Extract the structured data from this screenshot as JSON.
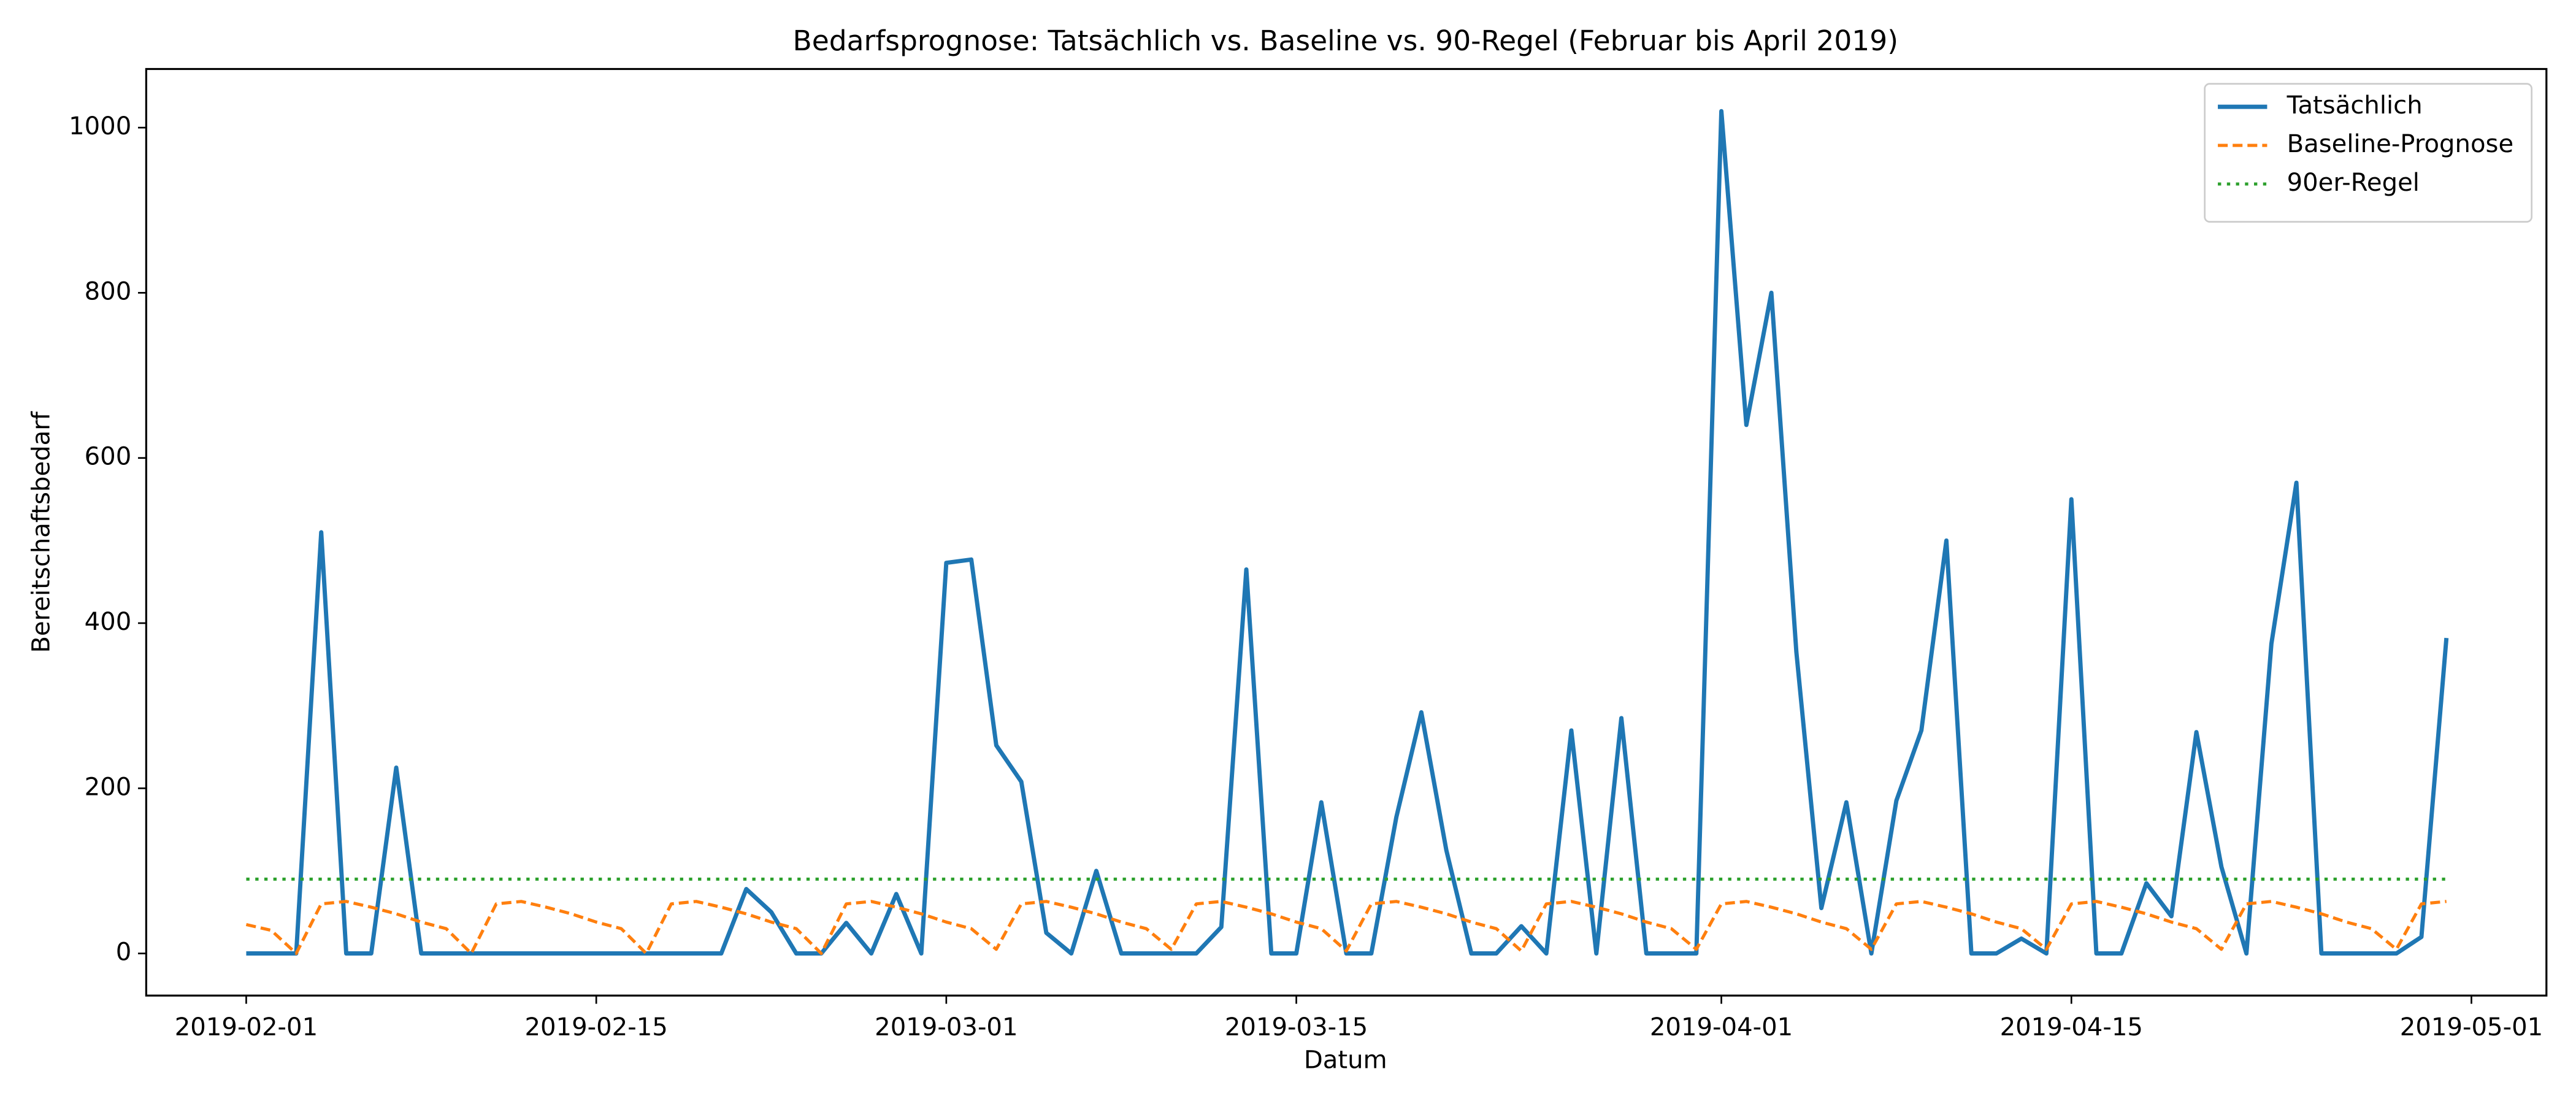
{
  "chart_data": {
    "type": "line",
    "title": "Bedarfsprognose: Tatsächlich vs. Baseline vs. 90-Regel (Februar bis April 2019)",
    "x_label": "Datum",
    "y_label": "Bereitschaftsbedarf",
    "x": [
      "2019-02-01",
      "2019-02-02",
      "2019-02-03",
      "2019-02-04",
      "2019-02-05",
      "2019-02-06",
      "2019-02-07",
      "2019-02-08",
      "2019-02-09",
      "2019-02-10",
      "2019-02-11",
      "2019-02-12",
      "2019-02-13",
      "2019-02-14",
      "2019-02-15",
      "2019-02-16",
      "2019-02-17",
      "2019-02-18",
      "2019-02-19",
      "2019-02-20",
      "2019-02-21",
      "2019-02-22",
      "2019-02-23",
      "2019-02-24",
      "2019-02-25",
      "2019-02-26",
      "2019-02-27",
      "2019-02-28",
      "2019-03-01",
      "2019-03-02",
      "2019-03-03",
      "2019-03-04",
      "2019-03-05",
      "2019-03-06",
      "2019-03-07",
      "2019-03-08",
      "2019-03-09",
      "2019-03-10",
      "2019-03-11",
      "2019-03-12",
      "2019-03-13",
      "2019-03-14",
      "2019-03-15",
      "2019-03-16",
      "2019-03-17",
      "2019-03-18",
      "2019-03-19",
      "2019-03-20",
      "2019-03-21",
      "2019-03-22",
      "2019-03-23",
      "2019-03-24",
      "2019-03-25",
      "2019-03-26",
      "2019-03-27",
      "2019-03-28",
      "2019-03-29",
      "2019-03-30",
      "2019-03-31",
      "2019-04-01",
      "2019-04-02",
      "2019-04-03",
      "2019-04-04",
      "2019-04-05",
      "2019-04-06",
      "2019-04-07",
      "2019-04-08",
      "2019-04-09",
      "2019-04-10",
      "2019-04-11",
      "2019-04-12",
      "2019-04-13",
      "2019-04-14",
      "2019-04-15",
      "2019-04-16",
      "2019-04-17",
      "2019-04-18",
      "2019-04-19",
      "2019-04-20",
      "2019-04-21",
      "2019-04-22",
      "2019-04-23",
      "2019-04-24",
      "2019-04-25",
      "2019-04-26",
      "2019-04-27",
      "2019-04-28",
      "2019-04-29",
      "2019-04-30"
    ],
    "series": [
      {
        "name": "Tatsächlich",
        "color": "#1f77b4",
        "style": "solid",
        "values": [
          0,
          0,
          0,
          510,
          0,
          0,
          225,
          0,
          0,
          0,
          0,
          0,
          0,
          0,
          0,
          0,
          0,
          0,
          0,
          0,
          78,
          50,
          0,
          0,
          37,
          0,
          72,
          0,
          473,
          477,
          252,
          208,
          25,
          0,
          100,
          0,
          0,
          0,
          0,
          32,
          465,
          0,
          0,
          183,
          0,
          0,
          165,
          292,
          125,
          0,
          0,
          33,
          0,
          270,
          0,
          285,
          0,
          0,
          0,
          1020,
          640,
          800,
          365,
          55,
          183,
          0,
          185,
          270,
          500,
          0,
          0,
          18,
          0,
          550,
          0,
          0,
          85,
          45,
          268,
          105,
          0,
          375,
          570,
          0,
          0,
          0,
          0,
          20,
          382
        ]
      },
      {
        "name": "Baseline-Prognose",
        "color": "#ff7f0e",
        "style": "dashed",
        "values": [
          35,
          28,
          0,
          60,
          63,
          56,
          48,
          38,
          30,
          0,
          60,
          63,
          56,
          48,
          38,
          30,
          0,
          60,
          63,
          56,
          48,
          38,
          30,
          0,
          60,
          63,
          56,
          48,
          38,
          30,
          5,
          60,
          63,
          56,
          48,
          38,
          30,
          5,
          60,
          63,
          56,
          48,
          38,
          30,
          3,
          60,
          63,
          56,
          48,
          38,
          30,
          3,
          60,
          63,
          56,
          48,
          38,
          30,
          5,
          60,
          63,
          56,
          48,
          38,
          30,
          5,
          60,
          63,
          56,
          48,
          38,
          30,
          5,
          60,
          63,
          56,
          48,
          38,
          30,
          5,
          60,
          63,
          56,
          48,
          38,
          30,
          5,
          60,
          63
        ]
      },
      {
        "name": "90er-Regel",
        "color": "#2ca02c",
        "style": "dotted",
        "values": [
          90,
          90,
          90,
          90,
          90,
          90,
          90,
          90,
          90,
          90,
          90,
          90,
          90,
          90,
          90,
          90,
          90,
          90,
          90,
          90,
          90,
          90,
          90,
          90,
          90,
          90,
          90,
          90,
          90,
          90,
          90,
          90,
          90,
          90,
          90,
          90,
          90,
          90,
          90,
          90,
          90,
          90,
          90,
          90,
          90,
          90,
          90,
          90,
          90,
          90,
          90,
          90,
          90,
          90,
          90,
          90,
          90,
          90,
          90,
          90,
          90,
          90,
          90,
          90,
          90,
          90,
          90,
          90,
          90,
          90,
          90,
          90,
          90,
          90,
          90,
          90,
          90,
          90,
          90,
          90,
          90,
          90,
          90,
          90,
          90,
          90,
          90,
          90,
          90
        ]
      }
    ],
    "xlim": [
      "2019-01-28",
      "2019-05-04"
    ],
    "xticks": [
      "2019-02-01",
      "2019-02-15",
      "2019-03-01",
      "2019-03-15",
      "2019-04-01",
      "2019-04-15",
      "2019-05-01"
    ],
    "ylim": [
      -51,
      1071
    ],
    "yticks": [
      0,
      200,
      400,
      600,
      800,
      1000
    ],
    "grid": false,
    "legend": "upper right"
  }
}
